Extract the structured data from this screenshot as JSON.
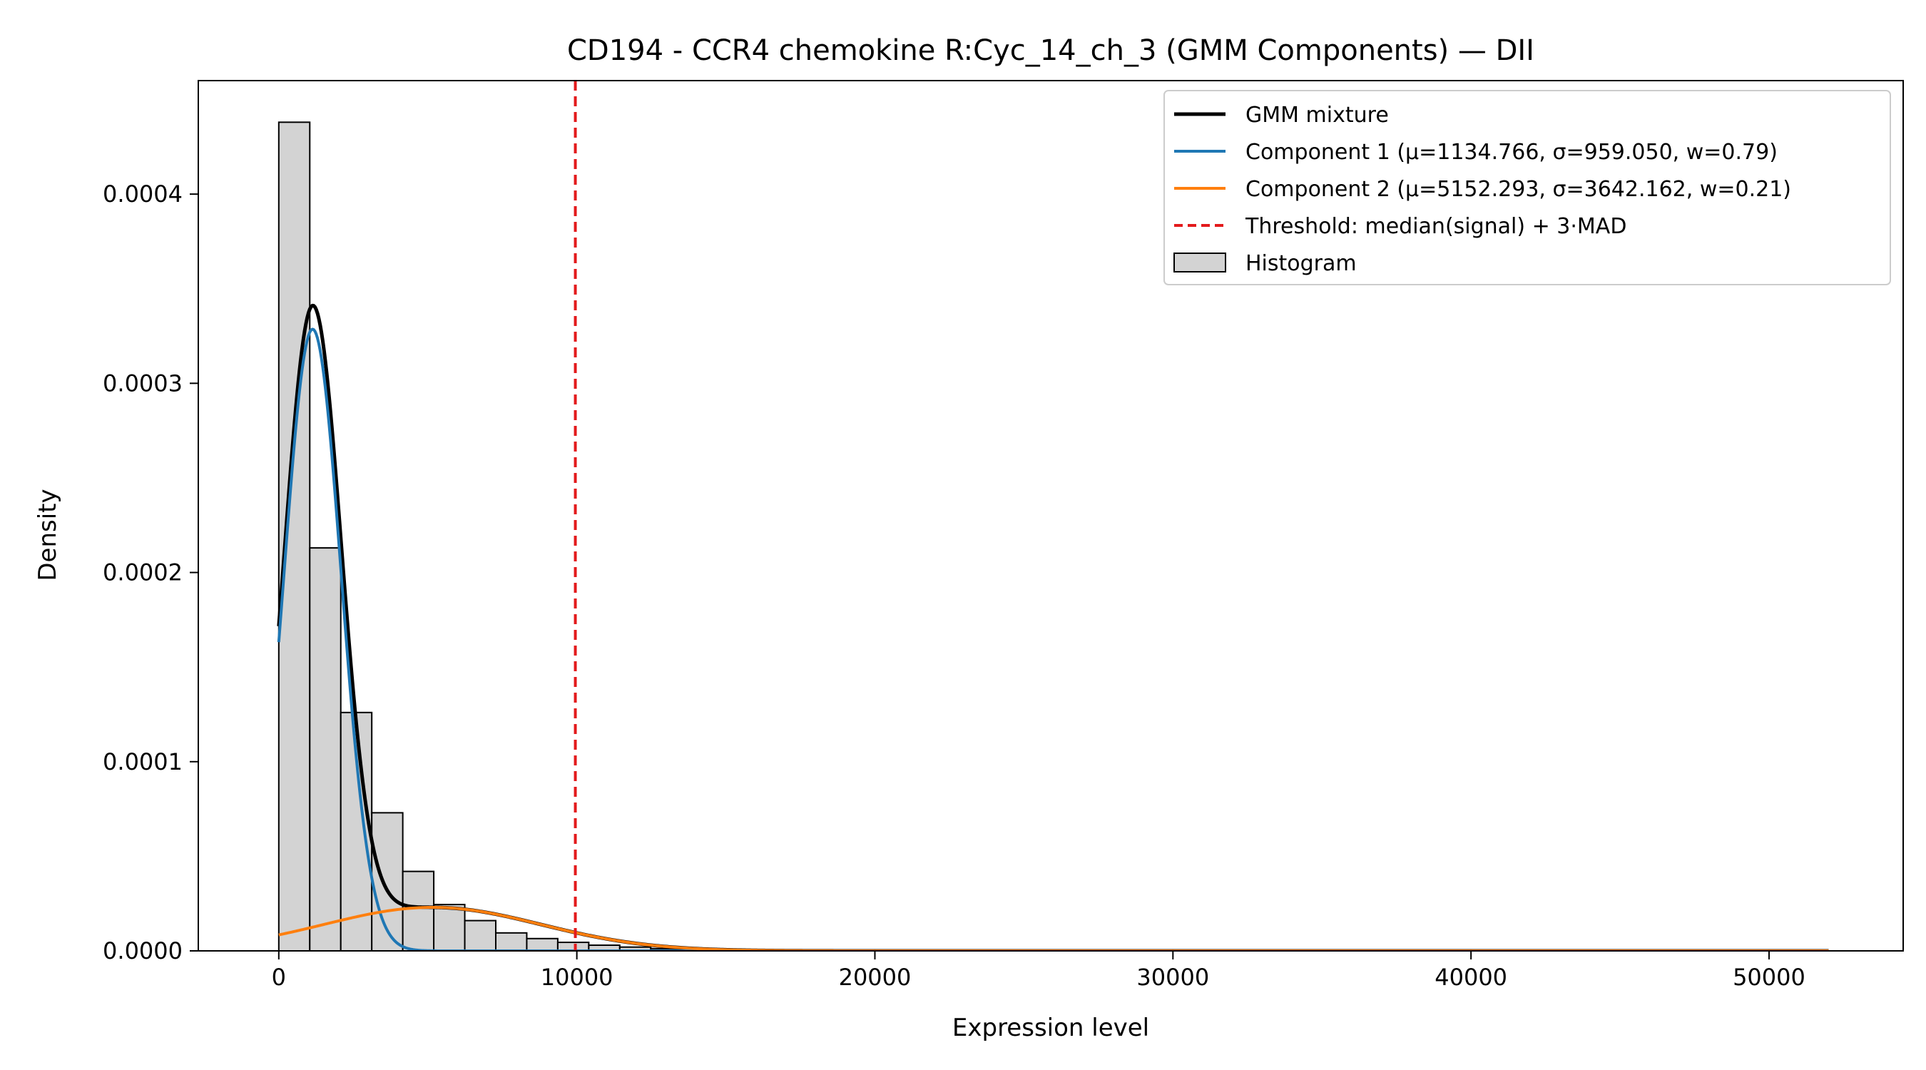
{
  "chart_data": {
    "type": "histogram-with-lines",
    "title": "CD194 - CCR4 chemokine R:Cyc_14_ch_3 (GMM Components) — DII",
    "xlabel": "Expression level",
    "ylabel": "Density",
    "xlim": [
      -2700,
      54500
    ],
    "ylim": [
      0,
      0.00046
    ],
    "x_ticks": [
      0,
      10000,
      20000,
      30000,
      40000,
      50000
    ],
    "x_tick_labels": [
      "0",
      "10000",
      "20000",
      "30000",
      "40000",
      "50000"
    ],
    "y_ticks": [
      0,
      0.0001,
      0.0002,
      0.0003,
      0.0004
    ],
    "y_tick_labels": [
      "0.0000",
      "0.0001",
      "0.0002",
      "0.0003",
      "0.0004"
    ],
    "histogram": {
      "name": "Histogram",
      "bin_start": 0,
      "bin_width": 1040,
      "densities": [
        0.000438,
        0.000213,
        0.000126,
        7.3e-05,
        4.2e-05,
        2.45e-05,
        1.6e-05,
        9.5e-06,
        6.5e-06,
        4.5e-06,
        3e-06,
        2e-06,
        1.2e-06,
        8e-07,
        5e-07,
        3e-07,
        2e-07,
        1e-07
      ],
      "color": "#d3d3d3",
      "edge_color": "#000000"
    },
    "series": [
      {
        "name": "GMM mixture",
        "type": "mixture",
        "color": "#000000",
        "x_range": [
          0,
          52000
        ]
      },
      {
        "name": "Component 1 (μ=1134.766, σ=959.050, w=0.79)",
        "type": "gaussian",
        "mu": 1134.766,
        "sigma": 959.05,
        "weight": 0.79,
        "color": "#1f77b4",
        "x_range": [
          0,
          52000
        ]
      },
      {
        "name": "Component 2 (μ=5152.293, σ=3642.162, w=0.21)",
        "type": "gaussian",
        "mu": 5152.293,
        "sigma": 3642.162,
        "weight": 0.21,
        "color": "#ff7f0e",
        "x_range": [
          0,
          52000
        ]
      }
    ],
    "threshold": {
      "name": "Threshold: median(signal) + 3·MAD",
      "x": 9950,
      "color": "#e31a1c",
      "style": "dashed"
    },
    "legend": {
      "location": "top-right",
      "entries": [
        "GMM mixture",
        "Component 1 (μ=1134.766, σ=959.050, w=0.79)",
        "Component 2 (μ=5152.293, σ=3642.162, w=0.21)",
        "Threshold: median(signal) + 3·MAD",
        "Histogram"
      ]
    },
    "grid": false
  }
}
